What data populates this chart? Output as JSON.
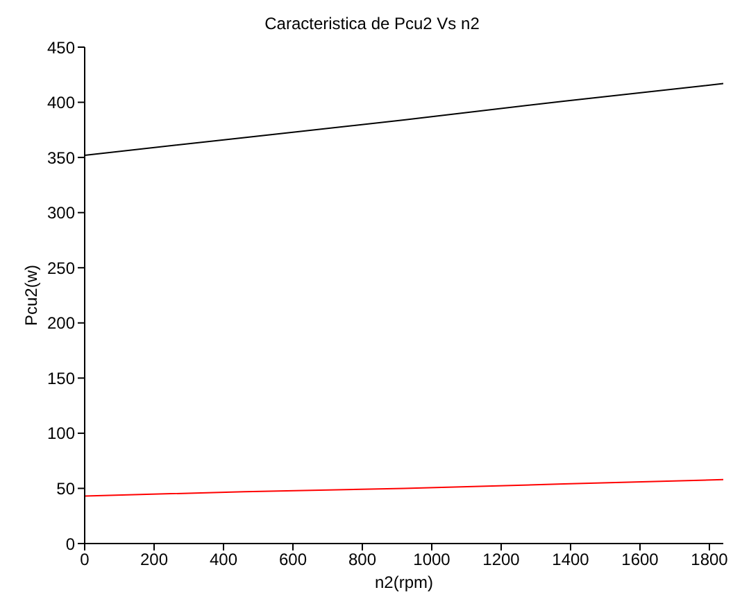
{
  "chart_data": {
    "type": "line",
    "title": "Caracteristica de Pcu2 Vs n2",
    "xlabel": "n2(rpm)",
    "ylabel": "Pcu2(w)",
    "x": [
      0,
      460,
      920,
      1380,
      1840
    ],
    "series": [
      {
        "color": "#000000",
        "values": [
          352,
          368,
          384,
          401,
          417
        ]
      },
      {
        "color": "#ff0000",
        "values": [
          43,
          47,
          50,
          54,
          58
        ]
      }
    ],
    "xlim": [
      0,
      1840
    ],
    "xticks": [
      0,
      200,
      400,
      600,
      800,
      1000,
      1200,
      1400,
      1600,
      1800
    ],
    "ylim": [
      0,
      450
    ],
    "yticks": [
      0,
      50,
      100,
      150,
      200,
      250,
      300,
      350,
      400,
      450
    ],
    "grid": false,
    "marker": "none",
    "line_style": "solid"
  }
}
